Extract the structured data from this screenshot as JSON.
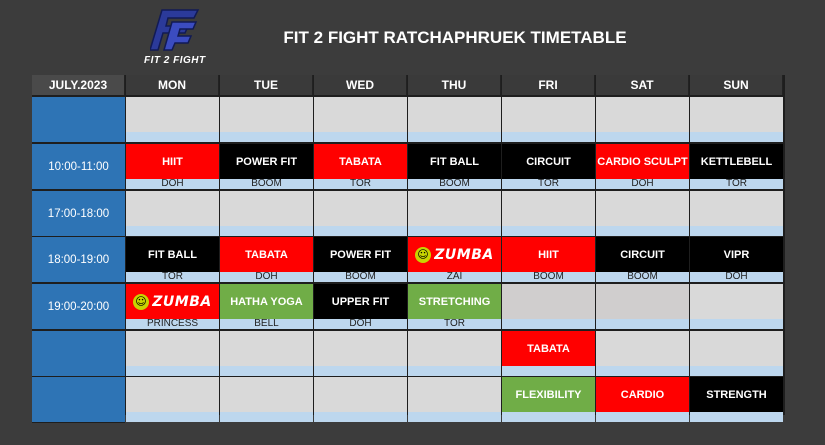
{
  "brand": {
    "name": "FIT 2 FIGHT",
    "logo_letters": "FF"
  },
  "title": "FIT 2 FIGHT RATCHAPHRUEK TIMETABLE",
  "month_label": "JULY.2023",
  "days": [
    "MON",
    "TUE",
    "WED",
    "THU",
    "FRI",
    "SAT",
    "SUN"
  ],
  "rows": [
    {
      "time": "",
      "cells": [
        {
          "cls": "",
          "inst": "",
          "color": "grey"
        },
        {
          "cls": "",
          "inst": "",
          "color": "grey"
        },
        {
          "cls": "",
          "inst": "",
          "color": "grey"
        },
        {
          "cls": "",
          "inst": "",
          "color": "grey"
        },
        {
          "cls": "",
          "inst": "",
          "color": "grey"
        },
        {
          "cls": "",
          "inst": "",
          "color": "grey"
        },
        {
          "cls": "",
          "inst": "",
          "color": "grey"
        }
      ]
    },
    {
      "time": "10:00-11:00",
      "cells": [
        {
          "cls": "HIIT",
          "inst": "DOH",
          "color": "red"
        },
        {
          "cls": "POWER FIT",
          "inst": "BOOM",
          "color": "black"
        },
        {
          "cls": "TABATA",
          "inst": "TOR",
          "color": "red"
        },
        {
          "cls": "FIT BALL",
          "inst": "BOOM",
          "color": "black"
        },
        {
          "cls": "CIRCUIT",
          "inst": "TOR",
          "color": "black"
        },
        {
          "cls": "CARDIO SCULPT",
          "inst": "DOH",
          "color": "red"
        },
        {
          "cls": "KETTLEBELL",
          "inst": "TOR",
          "color": "black"
        }
      ]
    },
    {
      "time": "17:00-18:00",
      "cells": [
        {
          "cls": "",
          "inst": "",
          "color": "grey"
        },
        {
          "cls": "",
          "inst": "",
          "color": "grey"
        },
        {
          "cls": "",
          "inst": "",
          "color": "grey"
        },
        {
          "cls": "",
          "inst": "",
          "color": "grey"
        },
        {
          "cls": "",
          "inst": "",
          "color": "grey"
        },
        {
          "cls": "",
          "inst": "",
          "color": "grey"
        },
        {
          "cls": "",
          "inst": "",
          "color": "grey"
        }
      ]
    },
    {
      "time": "18:00-19:00",
      "cells": [
        {
          "cls": "FIT BALL",
          "inst": "TOR",
          "color": "black"
        },
        {
          "cls": "TABATA",
          "inst": "DOH",
          "color": "red"
        },
        {
          "cls": "POWER FIT",
          "inst": "BOOM",
          "color": "black"
        },
        {
          "cls": "ZUMBA",
          "inst": "ZAI",
          "color": "red",
          "zumba": true
        },
        {
          "cls": "HIIT",
          "inst": "BOOM",
          "color": "red"
        },
        {
          "cls": "CIRCUIT",
          "inst": "BOOM",
          "color": "black"
        },
        {
          "cls": "VIPR",
          "inst": "DOH",
          "color": "black"
        }
      ]
    },
    {
      "time": "19:00-20:00",
      "cells": [
        {
          "cls": "ZUMBA",
          "inst": "PRINCESS",
          "color": "red",
          "zumba": true
        },
        {
          "cls": "HATHA YOGA",
          "inst": "BELL",
          "color": "green"
        },
        {
          "cls": "UPPER FIT",
          "inst": "DOH",
          "color": "black"
        },
        {
          "cls": "STRETCHING",
          "inst": "TOR",
          "color": "green"
        },
        {
          "cls": "",
          "inst": "",
          "color": "greyd"
        },
        {
          "cls": "",
          "inst": "",
          "color": "greyd"
        },
        {
          "cls": "",
          "inst": "",
          "color": "grey"
        }
      ]
    },
    {
      "time": "",
      "cells": [
        {
          "cls": "",
          "inst": "",
          "color": "grey"
        },
        {
          "cls": "",
          "inst": "",
          "color": "grey"
        },
        {
          "cls": "",
          "inst": "",
          "color": "grey"
        },
        {
          "cls": "",
          "inst": "",
          "color": "grey"
        },
        {
          "cls": "TABATA",
          "inst": "",
          "color": "red"
        },
        {
          "cls": "",
          "inst": "",
          "color": "grey"
        },
        {
          "cls": "",
          "inst": "",
          "color": "grey"
        }
      ]
    },
    {
      "time": "",
      "cells": [
        {
          "cls": "",
          "inst": "",
          "color": "grey"
        },
        {
          "cls": "",
          "inst": "",
          "color": "grey"
        },
        {
          "cls": "",
          "inst": "",
          "color": "grey"
        },
        {
          "cls": "",
          "inst": "",
          "color": "grey"
        },
        {
          "cls": "FLEXIBILITY",
          "inst": "",
          "color": "green"
        },
        {
          "cls": "CARDIO",
          "inst": "",
          "color": "red"
        },
        {
          "cls": "STRENGTH",
          "inst": "",
          "color": "black"
        }
      ]
    }
  ],
  "colors": {
    "background": "#3c3c3c",
    "time_cell": "#2e74b5",
    "instructor_band": "#bdd7ee",
    "red": "#ff0000",
    "black": "#000000",
    "green": "#70ad47",
    "empty": "#d9d9d9",
    "logo_blue": "#2b3a9a"
  },
  "icons": [
    "ff-logo-icon",
    "zumba-logo-icon"
  ]
}
